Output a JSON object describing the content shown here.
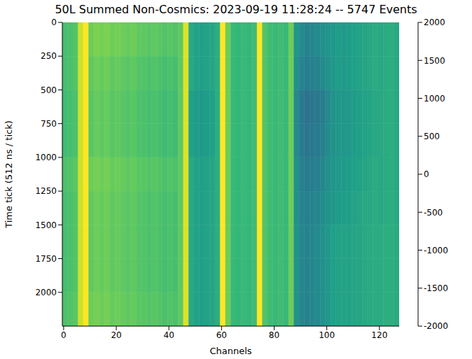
{
  "chart_data": {
    "type": "heatmap",
    "title": "50L Summed Non-Cosmics: 2023-09-19 11:28:24 -- 5747 Events",
    "x_label": "Channels",
    "y_label": "Time tick (512 ns / tick)",
    "xlim": [
      -0.5,
      127.5
    ],
    "ylim": [
      0,
      2250
    ],
    "xticks": [
      0,
      20,
      40,
      60,
      80,
      100,
      120
    ],
    "yticks": [
      0,
      250,
      500,
      750,
      1000,
      1250,
      1500,
      1750,
      2000
    ],
    "color": "viridis",
    "heatmap": {
      "x_edges": [
        -0.5,
        1.5,
        3.5,
        5.5,
        7.5,
        9.5,
        11.5,
        13.5,
        15.5,
        17.5,
        19.5,
        21.5,
        23.5,
        25.5,
        27.5,
        29.5,
        31.5,
        33.5,
        35.5,
        37.5,
        39.5,
        41.5,
        43.5,
        45.5,
        47.5,
        49.5,
        51.5,
        53.5,
        55.5,
        57.5,
        59.5,
        61.5,
        63.5,
        65.5,
        67.5,
        69.5,
        71.5,
        73.5,
        75.5,
        77.5,
        79.5,
        81.5,
        83.5,
        85.5,
        87.5,
        89.5,
        91.5,
        93.5,
        95.5,
        97.5,
        99.5,
        101.5,
        103.5,
        105.5,
        107.5,
        109.5,
        111.5,
        113.5,
        115.5,
        117.5,
        119.5,
        121.5,
        123.5,
        125.5,
        127.5
      ],
      "y_edges": [
        0,
        250,
        500,
        750,
        1000,
        1250,
        1500,
        1750,
        2000,
        2250
      ],
      "values": [
        [
          800,
          850,
          900,
          1700,
          2000,
          1100,
          1200,
          1150,
          1200,
          1100,
          1150,
          1100,
          1050,
          1100,
          1000,
          1000,
          950,
          1000,
          950,
          900,
          950,
          900,
          1000,
          1800,
          400,
          300,
          250,
          300,
          350,
          500,
          2000,
          1100,
          700,
          650,
          700,
          650,
          750,
          2000,
          900,
          750,
          700,
          750,
          700,
          1100,
          100,
          -100,
          -200,
          -150,
          -100,
          0,
          100,
          150,
          200,
          150,
          200,
          250,
          300,
          350,
          400,
          450,
          400,
          450,
          500,
          400
        ],
        [
          800,
          850,
          900,
          1700,
          2000,
          1000,
          1100,
          1050,
          1100,
          1000,
          1050,
          1000,
          950,
          1000,
          900,
          900,
          850,
          900,
          850,
          800,
          850,
          800,
          1000,
          1800,
          400,
          300,
          250,
          300,
          350,
          500,
          2000,
          1100,
          700,
          650,
          700,
          650,
          750,
          2000,
          900,
          750,
          700,
          750,
          700,
          1100,
          0,
          -200,
          -300,
          -250,
          -200,
          -100,
          50,
          150,
          200,
          150,
          200,
          250,
          300,
          350,
          400,
          450,
          400,
          450,
          500,
          400
        ],
        [
          750,
          800,
          850,
          1700,
          2000,
          950,
          1050,
          1000,
          1050,
          950,
          1000,
          950,
          900,
          950,
          850,
          850,
          800,
          850,
          800,
          750,
          800,
          750,
          1000,
          1800,
          250,
          200,
          150,
          200,
          250,
          500,
          2000,
          1100,
          700,
          650,
          700,
          650,
          750,
          2000,
          900,
          750,
          700,
          750,
          700,
          1100,
          -100,
          -400,
          -500,
          -450,
          -400,
          -300,
          -100,
          50,
          100,
          100,
          150,
          200,
          250,
          300,
          350,
          400,
          400,
          450,
          500,
          400
        ],
        [
          750,
          800,
          850,
          1700,
          2000,
          950,
          1050,
          1000,
          1050,
          950,
          1000,
          950,
          900,
          950,
          850,
          850,
          800,
          850,
          800,
          750,
          800,
          750,
          1000,
          1800,
          250,
          200,
          150,
          200,
          250,
          500,
          2000,
          1100,
          700,
          650,
          700,
          650,
          750,
          2000,
          900,
          750,
          700,
          750,
          700,
          1100,
          -100,
          -350,
          -450,
          -400,
          -350,
          -250,
          -50,
          50,
          100,
          100,
          150,
          200,
          250,
          300,
          350,
          400,
          400,
          450,
          500,
          400
        ],
        [
          850,
          900,
          950,
          1700,
          2000,
          1100,
          1150,
          1100,
          1150,
          1050,
          1100,
          1050,
          1000,
          1050,
          950,
          950,
          900,
          950,
          900,
          850,
          900,
          850,
          1000,
          1800,
          400,
          300,
          250,
          300,
          350,
          500,
          2000,
          1100,
          700,
          650,
          700,
          650,
          750,
          2000,
          900,
          750,
          700,
          750,
          700,
          1100,
          0,
          -250,
          -350,
          -300,
          -250,
          -150,
          0,
          100,
          150,
          150,
          200,
          250,
          300,
          350,
          400,
          450,
          400,
          450,
          500,
          400
        ],
        [
          800,
          850,
          900,
          1700,
          2000,
          1000,
          1100,
          1050,
          1100,
          1000,
          1050,
          1000,
          950,
          1000,
          900,
          900,
          850,
          900,
          850,
          800,
          850,
          800,
          1000,
          1800,
          400,
          300,
          250,
          300,
          350,
          500,
          2000,
          1100,
          700,
          650,
          700,
          650,
          750,
          2000,
          900,
          750,
          700,
          750,
          700,
          1100,
          0,
          -200,
          -250,
          -200,
          -150,
          -50,
          50,
          150,
          200,
          200,
          250,
          300,
          350,
          400,
          400,
          450,
          400,
          450,
          500,
          400
        ],
        [
          800,
          850,
          900,
          1700,
          2000,
          1000,
          1100,
          1050,
          1100,
          1000,
          1050,
          1000,
          950,
          1000,
          900,
          900,
          850,
          900,
          850,
          800,
          850,
          800,
          1000,
          1800,
          400,
          300,
          250,
          300,
          350,
          500,
          2000,
          1100,
          700,
          650,
          700,
          650,
          750,
          2000,
          900,
          750,
          700,
          750,
          700,
          1100,
          50,
          -150,
          -200,
          -150,
          -100,
          0,
          150,
          250,
          300,
          300,
          300,
          350,
          350,
          400,
          450,
          450,
          450,
          500,
          500,
          450
        ],
        [
          800,
          850,
          900,
          1700,
          2000,
          1000,
          1100,
          1050,
          1100,
          1000,
          1050,
          1000,
          950,
          1000,
          900,
          900,
          850,
          900,
          850,
          800,
          850,
          800,
          1000,
          1800,
          400,
          300,
          250,
          300,
          350,
          500,
          2000,
          1100,
          700,
          650,
          700,
          650,
          750,
          2000,
          900,
          750,
          700,
          750,
          700,
          1100,
          50,
          -150,
          -200,
          -150,
          -100,
          0,
          150,
          250,
          300,
          300,
          300,
          350,
          350,
          400,
          450,
          450,
          450,
          500,
          500,
          450
        ],
        [
          850,
          900,
          950,
          1700,
          2000,
          1100,
          1150,
          1100,
          1150,
          1050,
          1100,
          1050,
          1000,
          1050,
          950,
          950,
          900,
          950,
          900,
          850,
          900,
          850,
          1000,
          1800,
          400,
          300,
          250,
          300,
          350,
          500,
          2000,
          1100,
          700,
          650,
          700,
          650,
          750,
          2000,
          900,
          750,
          700,
          750,
          700,
          1100,
          50,
          -150,
          -200,
          -150,
          -100,
          0,
          150,
          250,
          300,
          300,
          300,
          350,
          350,
          400,
          450,
          450,
          450,
          500,
          500,
          450
        ]
      ]
    },
    "colorbar": {
      "range": [
        -2000,
        2000
      ],
      "ticks": [
        -2000,
        -1500,
        -1000,
        -500,
        0,
        500,
        1000,
        1500,
        2000
      ]
    }
  }
}
